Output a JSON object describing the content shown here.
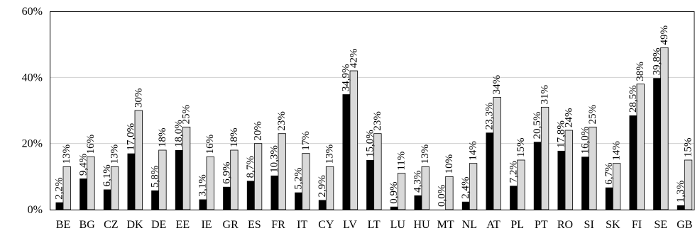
{
  "chart_data": {
    "type": "bar",
    "title": "",
    "xlabel": "",
    "ylabel": "",
    "ylim": [
      0,
      60
    ],
    "y_ticks": [
      "0%",
      "20%",
      "40%",
      "60%"
    ],
    "y_tick_values": [
      0,
      20,
      40,
      60
    ],
    "grid": true,
    "categories": [
      "BE",
      "BG",
      "CZ",
      "DK",
      "DE",
      "EE",
      "IE",
      "GR",
      "ES",
      "FR",
      "IT",
      "CY",
      "LV",
      "LT",
      "LU",
      "HU",
      "MT",
      "NL",
      "AT",
      "PL",
      "PT",
      "RO",
      "SI",
      "SK",
      "FI",
      "SE",
      "GB"
    ],
    "series": [
      {
        "color": "#000000",
        "values": [
          2.2,
          9.4,
          6.1,
          17.0,
          5.8,
          18.0,
          3.1,
          6.9,
          8.7,
          10.3,
          5.2,
          2.9,
          34.9,
          15.0,
          0.9,
          4.3,
          0.0,
          2.4,
          23.3,
          7.2,
          20.5,
          17.8,
          16.0,
          6.7,
          28.5,
          39.8,
          1.3
        ],
        "labels": [
          "2,2%",
          "9,4%",
          "6,1%",
          "17,0%",
          "5,8%",
          "18,0%",
          "3,1%",
          "6,9%",
          "8,7%",
          "10,3%",
          "5,2%",
          "2,9%",
          "34,9%",
          "15,0%",
          "0,9%",
          "4,3%",
          "0,0%",
          "2,4%",
          "23,3%",
          "7,2%",
          "20,5%",
          "17,8%",
          "16,0%",
          "6,7%",
          "28,5%",
          "39,8%",
          "1,3%"
        ]
      },
      {
        "color": "#d9d9d9",
        "values": [
          13,
          16,
          13,
          30,
          18,
          25,
          16,
          18,
          20,
          23,
          17,
          13,
          42,
          23,
          11,
          13,
          10,
          14,
          34,
          15,
          31,
          24,
          25,
          14,
          38,
          49,
          15
        ],
        "labels": [
          "13%",
          "16%",
          "13%",
          "30%",
          "18%",
          "25%",
          "16%",
          "18%",
          "20%",
          "23%",
          "17%",
          "13%",
          "42%",
          "23%",
          "11%",
          "13%",
          "10%",
          "14%",
          "34%",
          "15%",
          "31%",
          "24%",
          "25%",
          "14%",
          "38%",
          "49%",
          "15%"
        ]
      }
    ]
  }
}
